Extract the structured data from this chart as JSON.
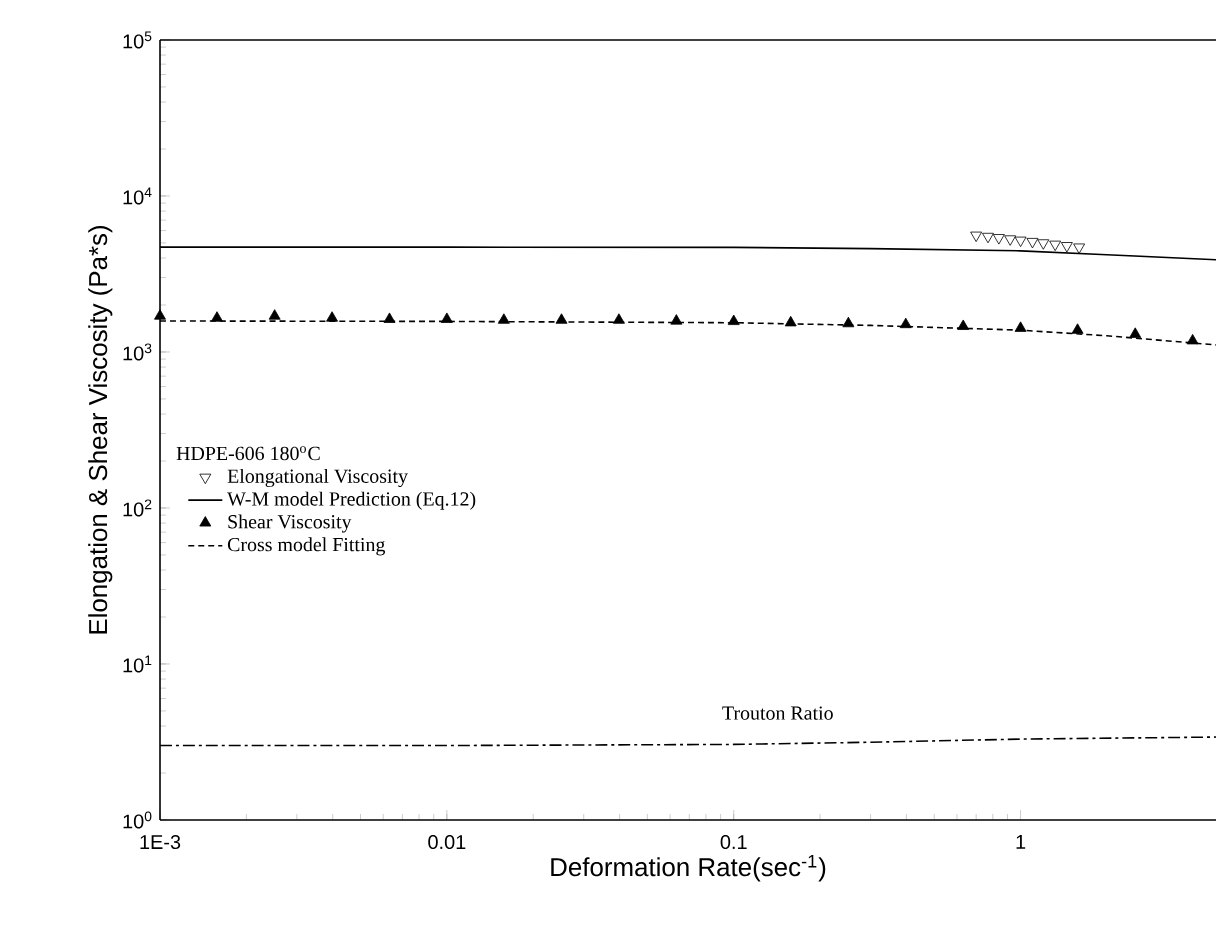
{
  "chart_data": {
    "type": "line",
    "xlabel": "Deformation Rate(sec$^{-1}$)",
    "ylabel": "Elongation & Shear Viscosity (Pa*s)",
    "legend_title": "HDPE-606  180$^{o}$C",
    "log": "xy",
    "xlim": [
      0.001,
      4.8
    ],
    "ylim": [
      1,
      100000
    ],
    "xticks": [
      {
        "value": 0.001,
        "label": "1E-3"
      },
      0.01,
      0.1,
      1
    ],
    "yticks": [
      {
        "value": 1,
        "label": "10$^{0}$"
      },
      {
        "value": 10,
        "label": "10$^{1}$"
      },
      {
        "value": 100,
        "label": "10$^{2}$"
      },
      {
        "value": 1000,
        "label": "10$^{3}$"
      },
      {
        "value": 10000,
        "label": "10$^{4}$"
      },
      {
        "value": 100000,
        "label": "10$^{5}$"
      }
    ],
    "legend": "left",
    "grid": false,
    "series": [
      {
        "name": "Elongational Viscosity",
        "type": "scatter",
        "marker": "triangle_down",
        "color": "#000000",
        "x": [
          0.7,
          0.77,
          0.84,
          0.92,
          1.0,
          1.1,
          1.2,
          1.32,
          1.45,
          1.6
        ],
        "values": [
          5600,
          5500,
          5400,
          5300,
          5200,
          5100,
          5000,
          4900,
          4800,
          4700
        ]
      },
      {
        "name": "W-M model Prediction (Eq.12)",
        "line_style": "solid",
        "color": "#000000",
        "x": [
          0.001,
          0.01,
          0.1,
          0.3,
          1,
          2,
          4.8
        ],
        "values": [
          4700,
          4700,
          4680,
          4600,
          4450,
          4200,
          3900
        ]
      },
      {
        "name": "Shear Viscosity",
        "type": "scatter",
        "marker": "triangle",
        "color": "#000000",
        "x": [
          0.001,
          0.00158,
          0.00251,
          0.00398,
          0.00631,
          0.01,
          0.0158,
          0.0251,
          0.0398,
          0.0631,
          0.1,
          0.158,
          0.251,
          0.398,
          0.631,
          1,
          1.58,
          2.51,
          3.98
        ],
        "values": [
          1700,
          1650,
          1700,
          1650,
          1620,
          1620,
          1600,
          1600,
          1600,
          1580,
          1570,
          1540,
          1520,
          1500,
          1460,
          1420,
          1380,
          1300,
          1180
        ]
      },
      {
        "name": "Cross model Fitting",
        "line_style": "dashed",
        "color": "#000000",
        "x": [
          0.001,
          0.01,
          0.1,
          0.3,
          1,
          2,
          4.8
        ],
        "values": [
          1580,
          1570,
          1540,
          1480,
          1380,
          1270,
          1110
        ]
      },
      {
        "line_style": "dashdot",
        "color": "#000000",
        "x": [
          0.001,
          0.01,
          0.1,
          0.3,
          1,
          4.8
        ],
        "values": [
          3.0,
          3.0,
          3.05,
          3.15,
          3.3,
          3.4
        ]
      }
    ],
    "annotations": [
      "Trouton Ratio"
    ]
  }
}
